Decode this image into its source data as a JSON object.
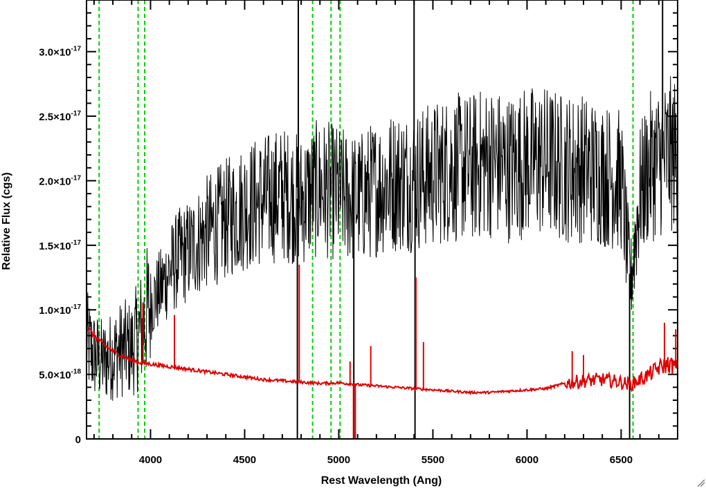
{
  "chart_data": {
    "type": "line",
    "xlabel": "Rest Wavelength (Ang)",
    "ylabel": "Relative Flux (cgs)",
    "xlim": [
      3660,
      6800
    ],
    "ylim": [
      0,
      3.4e-17
    ],
    "grid": false,
    "x_ticks": [
      {
        "value": 4000,
        "label": "4000"
      },
      {
        "value": 4500,
        "label": "4500"
      },
      {
        "value": 5000,
        "label": "5000"
      },
      {
        "value": 5500,
        "label": "5500"
      },
      {
        "value": 6000,
        "label": "6000"
      },
      {
        "value": 6500,
        "label": "6500"
      }
    ],
    "y_ticks": [
      {
        "value": 0,
        "mantissa": "0",
        "exponent": ""
      },
      {
        "value": 5e-18,
        "mantissa": "5.0×10",
        "exponent": "-18"
      },
      {
        "value": 1e-17,
        "mantissa": "1.0×10",
        "exponent": "-17"
      },
      {
        "value": 1.5e-17,
        "mantissa": "1.5×10",
        "exponent": "-17"
      },
      {
        "value": 2e-17,
        "mantissa": "2.0×10",
        "exponent": "-17"
      },
      {
        "value": 2.5e-17,
        "mantissa": "2.5×10",
        "exponent": "-17"
      },
      {
        "value": 3e-17,
        "mantissa": "3.0×10",
        "exponent": "-17"
      }
    ],
    "series": [
      {
        "color": "#000000",
        "style": "noisy",
        "x": [
          3660,
          3700,
          3750,
          3800,
          3850,
          3900,
          3950,
          4000,
          4050,
          4100,
          4150,
          4200,
          4300,
          4400,
          4500,
          4600,
          4700,
          4800,
          4900,
          5000,
          5100,
          5200,
          5300,
          5400,
          5500,
          5600,
          5700,
          5800,
          5900,
          6000,
          6100,
          6200,
          6300,
          6400,
          6500,
          6550,
          6600,
          6650,
          6700,
          6750,
          6800
        ],
        "y": [
          7.5e-18,
          6.5e-18,
          6e-18,
          6.5e-18,
          7e-18,
          7e-18,
          8.5e-18,
          1.05e-17,
          1.15e-17,
          1.3e-17,
          1.4e-17,
          1.45e-17,
          1.6e-17,
          1.7e-17,
          1.8e-17,
          1.85e-17,
          1.9e-17,
          1.85e-17,
          1.95e-17,
          1.9e-17,
          1.85e-17,
          1.95e-17,
          2e-17,
          2e-17,
          2.05e-17,
          2.1e-17,
          2.1e-17,
          2.15e-17,
          2.1e-17,
          2.15e-17,
          2.15e-17,
          2.1e-17,
          2.1e-17,
          2.05e-17,
          2e-17,
          1.2e-17,
          1.9e-17,
          2.1e-17,
          2.15e-17,
          2.2e-17,
          2.2e-17
        ]
      },
      {
        "color": "#e00000",
        "style": "smooth",
        "x": [
          3660,
          3700,
          3750,
          3800,
          3850,
          3900,
          3950,
          4000,
          4100,
          4200,
          4300,
          4400,
          4500,
          4600,
          4700,
          4800,
          4900,
          5000,
          5100,
          5200,
          5300,
          5400,
          5500,
          5600,
          5700,
          5800,
          5900,
          6000,
          6100,
          6200,
          6300,
          6400,
          6500,
          6550,
          6600,
          6650,
          6700,
          6750,
          6800
        ],
        "y": [
          8.7e-18,
          8e-18,
          7.3e-18,
          6.8e-18,
          6.4e-18,
          6.1e-18,
          5.9e-18,
          5.8e-18,
          5.6e-18,
          5.4e-18,
          5.2e-18,
          5e-18,
          4.8e-18,
          4.6e-18,
          4.5e-18,
          4.4e-18,
          4.3e-18,
          4.35e-18,
          4.2e-18,
          4.1e-18,
          4e-18,
          3.9e-18,
          3.8e-18,
          3.7e-18,
          3.6e-18,
          3.6e-18,
          3.7e-18,
          3.8e-18,
          3.9e-18,
          4.3e-18,
          4.5e-18,
          4.6e-18,
          4.4e-18,
          4.2e-18,
          4.6e-18,
          5e-18,
          5.5e-18,
          5.8e-18,
          5.5e-18
        ]
      }
    ],
    "red_spikes": [
      {
        "x": 3960,
        "y": 1.05e-17
      },
      {
        "x": 4127,
        "y": 9.6e-18
      },
      {
        "x": 4790,
        "y": 1.35e-17
      },
      {
        "x": 5060,
        "y": 6e-18
      },
      {
        "x": 5170,
        "y": 7.2e-18
      },
      {
        "x": 5410,
        "y": 1.25e-17
      },
      {
        "x": 5450,
        "y": 7.5e-18
      },
      {
        "x": 6240,
        "y": 6.8e-18
      },
      {
        "x": 6300,
        "y": 6.5e-18
      },
      {
        "x": 6730,
        "y": 9e-18
      },
      {
        "x": 6790,
        "y": 8.5e-18
      }
    ],
    "black_spikes": [
      {
        "x": 4780,
        "to": 0
      },
      {
        "x": 4785,
        "to": 3.4e-17
      },
      {
        "x": 5400,
        "to": 3.4e-17
      },
      {
        "x": 5405,
        "to": 0
      },
      {
        "x": 5080,
        "to": 0
      },
      {
        "x": 6720,
        "to": 3.4e-17
      },
      {
        "x": 6545,
        "to": 0
      }
    ],
    "vertical_markers": {
      "color": "#00d000",
      "style": "dashed",
      "x": [
        3727,
        3934,
        3969,
        4861,
        4959,
        5007,
        6563
      ]
    }
  }
}
